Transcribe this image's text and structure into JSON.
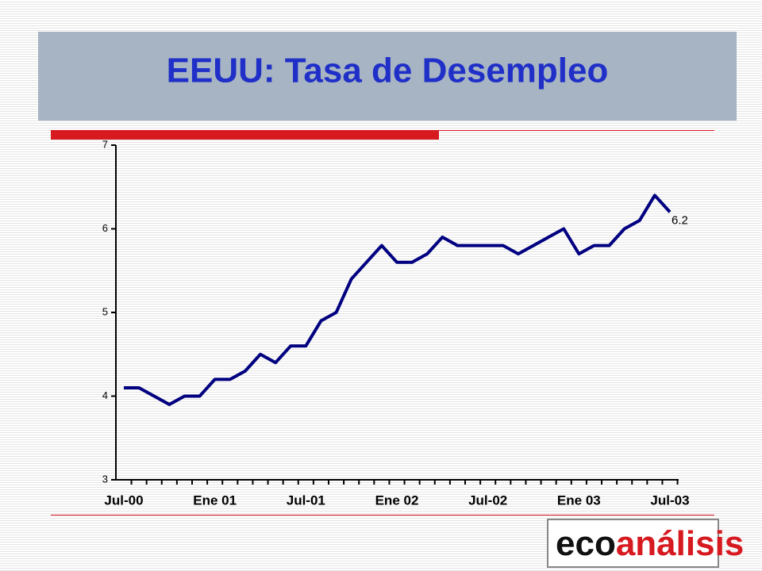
{
  "chart_data": {
    "type": "line",
    "title": "EEUU: Tasa de Desempleo",
    "categories": [
      "Jul-00",
      null,
      null,
      null,
      null,
      null,
      "Ene 01",
      null,
      null,
      null,
      null,
      null,
      "Jul-01",
      null,
      null,
      null,
      null,
      null,
      "Ene 02",
      null,
      null,
      null,
      null,
      null,
      "Jul-02",
      null,
      null,
      null,
      null,
      null,
      "Ene 03",
      null,
      null,
      null,
      null,
      null,
      "Jul-03"
    ],
    "values": [
      4.1,
      4.1,
      4.0,
      3.9,
      4.0,
      4.0,
      4.2,
      4.2,
      4.3,
      4.5,
      4.4,
      4.6,
      4.6,
      4.9,
      5.0,
      5.4,
      5.6,
      5.8,
      5.6,
      5.6,
      5.7,
      5.9,
      5.8,
      5.8,
      5.8,
      5.8,
      5.7,
      5.8,
      5.9,
      6.0,
      5.7,
      5.8,
      5.8,
      6.0,
      6.1,
      6.4,
      6.2
    ],
    "color": "#000080",
    "ylim": [
      3,
      7
    ],
    "yticks": [
      3,
      4,
      5,
      6,
      7
    ],
    "grid": false
  },
  "logo": {
    "part1": "eco",
    "part2": "análisis"
  }
}
